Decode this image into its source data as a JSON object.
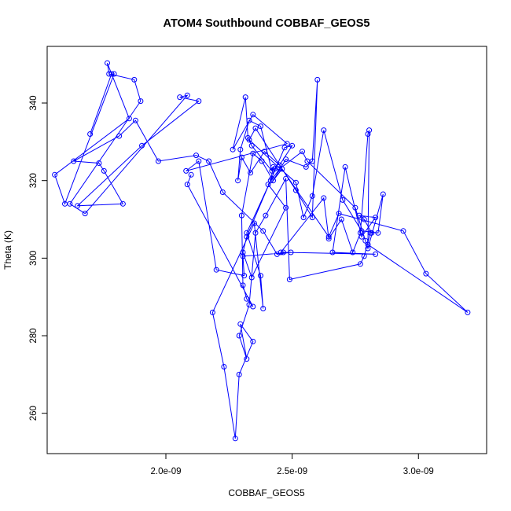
{
  "chart_data": {
    "type": "line",
    "title": "ATOM4 Southbound COBBAF_GEOS5",
    "xlabel": "COBBAF_GEOS5",
    "ylabel": "Theta (K)",
    "x_ticks": [
      "2.0e-09",
      "2.5e-09",
      "3.0e-09"
    ],
    "x_tick_values": [
      2e-09,
      2.5e-09,
      3e-09
    ],
    "y_ticks": [
      "260",
      "280",
      "300",
      "320",
      "340"
    ],
    "y_tick_values": [
      260,
      280,
      300,
      320,
      340
    ],
    "xlim": [
      1.53e-09,
      3.27e-09
    ],
    "ylim": [
      249.6,
      354.6
    ],
    "grid": false,
    "colors": {
      "series": "#0000ff",
      "axes": "#000000"
    },
    "series": [
      {
        "marker": "open-circle",
        "x": [
          1.7e-09,
          1.785e-09,
          1.795e-09,
          1.6e-09,
          1.56e-09,
          1.855e-09,
          1.768e-09,
          1.775e-09,
          1.875e-09,
          1.9e-09,
          1.62e-09,
          1.68e-09,
          2.085e-09,
          2.055e-09,
          2.13e-09,
          1.905e-09,
          1.65e-09,
          1.83e-09,
          1.755e-09,
          1.735e-09,
          1.635e-09,
          1.815e-09,
          1.88e-09,
          1.97e-09,
          2.12e-09,
          2.17e-09,
          2.225e-09,
          2.385e-09,
          2.44e-09,
          2.495e-09,
          2.305e-09,
          2.31e-09,
          2.2e-09,
          2.13e-09,
          2.08e-09,
          2.48e-09,
          2.345e-09,
          2.265e-09,
          2.315e-09,
          2.325e-09,
          2.34e-09,
          2.42e-09,
          2.375e-09,
          2.33e-09,
          2.295e-09,
          2.285e-09,
          2.3e-09,
          2.335e-09,
          2.39e-09,
          2.45e-09,
          2.5e-09,
          2.47e-09,
          2.32e-09,
          2.305e-09,
          2.34e-09,
          2.475e-09,
          2.405e-09,
          2.45e-09,
          2.54e-09,
          2.56e-09,
          2.75e-09,
          2.79e-09,
          2.8e-09,
          2.86e-09,
          2.84e-09,
          2.775e-09,
          2.7e-09,
          2.625e-09,
          2.58e-09,
          2.545e-09,
          2.515e-09,
          2.445e-09,
          2.33e-09,
          2.355e-09,
          2.515e-09,
          2.58e-09,
          2.6e-09,
          2.58e-09,
          2.555e-09,
          2.475e-09,
          2.425e-09,
          2.46e-09,
          2.645e-09,
          2.685e-09,
          2.94e-09,
          3.03e-09,
          3.195e-09,
          2.8e-09,
          2.805e-09,
          2.8e-09,
          2.77e-09,
          2.74e-09,
          2.695e-09,
          2.645e-09,
          2.625e-09,
          2.455e-09,
          2.465e-09,
          2.83e-09,
          2.66e-09,
          2.71e-09,
          2.775e-09,
          2.83e-09,
          2.765e-09,
          2.785e-09,
          2.815e-09,
          2.81e-09,
          2.785e-09,
          2.77e-09,
          2.49e-09,
          2.475e-09,
          2.395e-09,
          2.355e-09,
          2.33e-09,
          2.29e-09,
          2.32e-09,
          2.295e-09,
          2.345e-09,
          2.29e-09,
          2.275e-09,
          2.23e-09,
          2.185e-09,
          2.35e-09,
          2.385e-09,
          2.375e-09,
          2.32e-09,
          2.415e-09,
          2.425e-09,
          2.43e-09,
          2.42e-09,
          2.38e-09,
          2.345e-09,
          2.3e-09,
          2.305e-09,
          2.32e-09,
          2.345e-09,
          2.085e-09,
          2.1e-09
        ],
        "y": [
          332,
          347.5,
          347.5,
          314,
          321.5,
          336,
          350.3,
          347.5,
          346,
          340.5,
          314,
          311.5,
          342,
          341.5,
          340.5,
          329,
          313.5,
          314,
          322.5,
          324.5,
          325,
          331.5,
          335.5,
          325,
          326.5,
          325,
          317,
          307,
          301,
          301.5,
          300.5,
          295.5,
          297,
          325,
          322.5,
          329.5,
          337,
          328,
          341.5,
          331,
          329,
          322.5,
          334,
          335.5,
          328,
          320,
          326,
          322,
          327.5,
          324,
          329,
          328.5,
          305.5,
          301.5,
          295,
          313,
          319,
          323,
          327.5,
          325,
          313,
          304.5,
          302.5,
          316.5,
          306.5,
          307,
          315,
          333,
          316,
          310.5,
          319.5,
          323.5,
          330.5,
          333.5,
          317.5,
          310.5,
          346,
          325,
          323.5,
          325.5,
          320,
          323,
          305.5,
          311.5,
          307,
          296,
          286,
          303.5,
          333,
          332,
          306.5,
          301.5,
          310,
          305,
          315.5,
          301.5,
          301.5,
          301,
          301.5,
          323.5,
          305.5,
          310.5,
          311,
          310,
          306.5,
          306.5,
          300.5,
          298.5,
          294.5,
          320.5,
          311,
          306.5,
          288,
          280,
          274,
          283,
          278.5,
          270,
          253.5,
          272,
          286,
          309,
          287,
          295.5,
          306.5,
          320,
          323.5,
          323,
          320.5,
          325,
          327,
          311,
          293,
          289.5,
          287.5,
          319,
          321.5
        ]
      }
    ]
  }
}
